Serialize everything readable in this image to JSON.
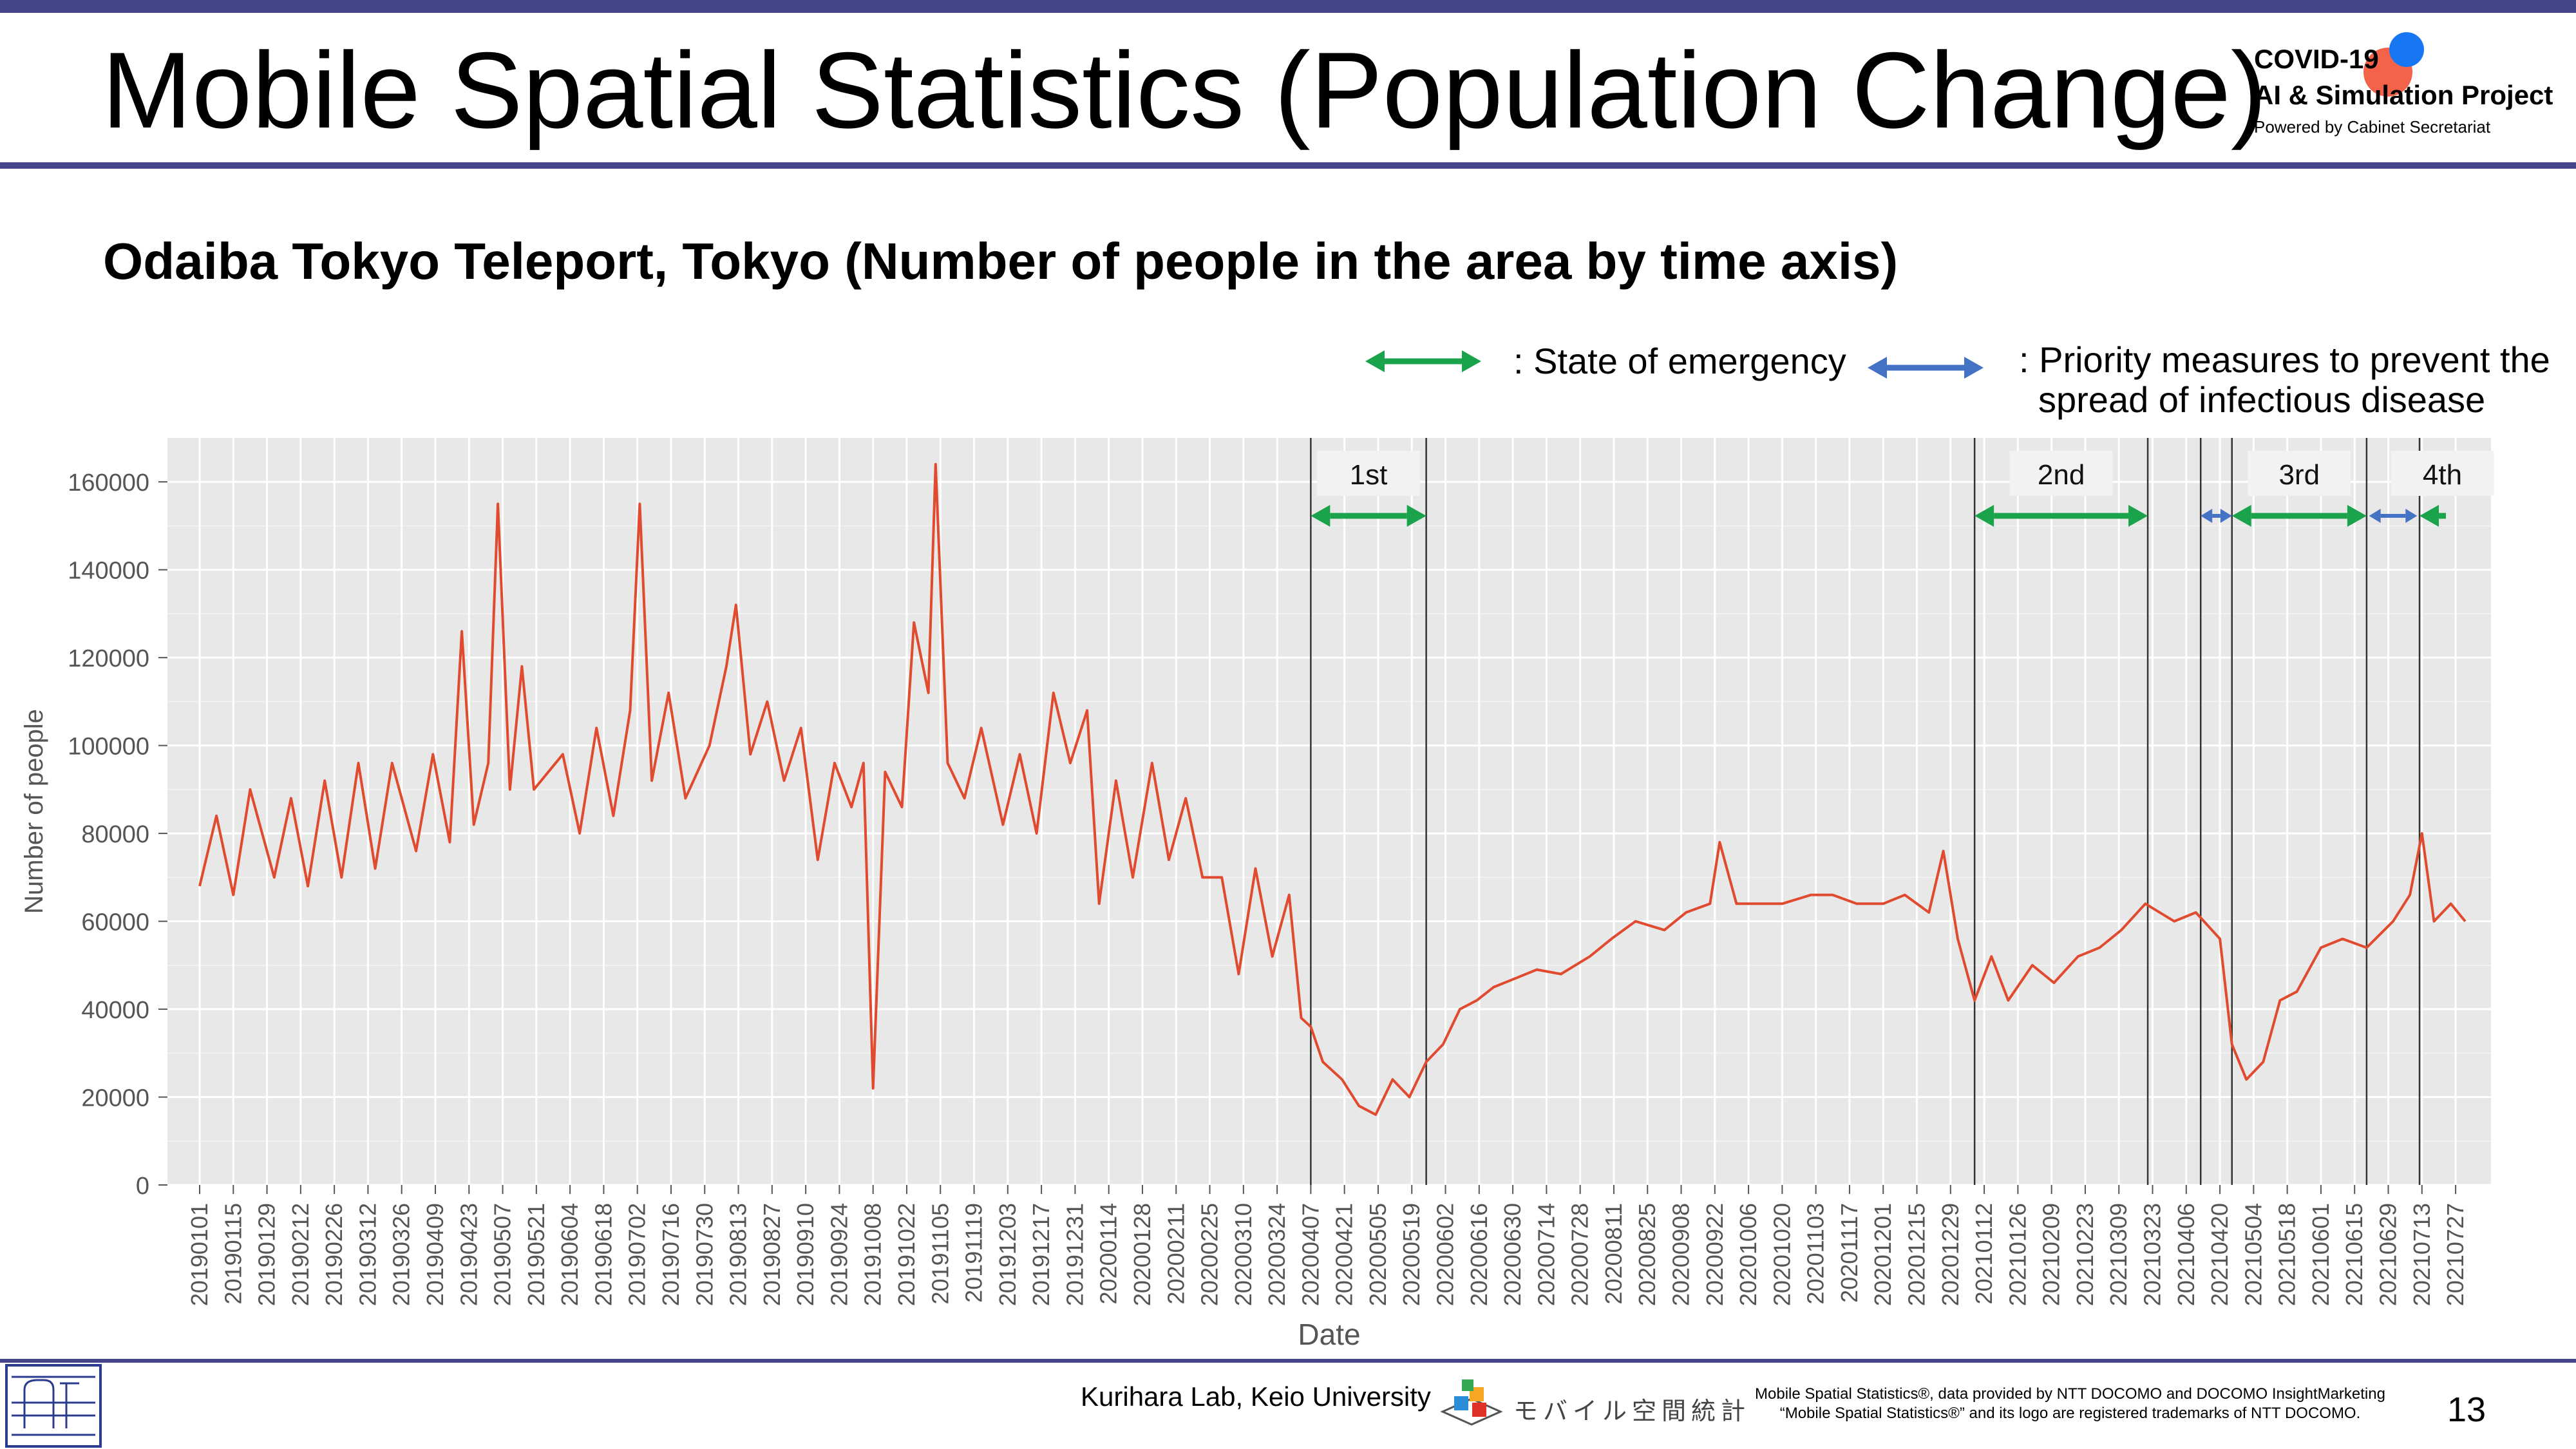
{
  "header": {
    "title": "Mobile Spatial Statistics (Population Change)",
    "logo": {
      "line1": "COVID-19",
      "line2": "AI & Simulation Project",
      "line3": "Powered by Cabinet Secretariat",
      "dot_colors": [
        "#f2634a",
        "#1777f2"
      ]
    }
  },
  "subtitle": "Odaiba Tokyo Teleport, Tokyo (Number of people in the area by time axis)",
  "legend": {
    "emergency": ": State of emergency",
    "priority_line1": ": Priority measures to prevent the",
    "priority_line2": "spread of infectious disease",
    "emergency_color": "#1aa34a",
    "priority_color": "#4472c4"
  },
  "chart_data": {
    "type": "line",
    "title": "",
    "xlabel": "Date",
    "ylabel": "Number of people",
    "ylim": [
      0,
      170000
    ],
    "yticks": [
      0,
      20000,
      40000,
      60000,
      80000,
      100000,
      120000,
      140000,
      160000
    ],
    "grid": true,
    "line_color": "#e04a2f",
    "x_start": "2019-01-01",
    "x_end": "2021-07-31",
    "xticks": [
      "20190101",
      "20190115",
      "20190129",
      "20190212",
      "20190226",
      "20190312",
      "20190326",
      "20190409",
      "20190423",
      "20190507",
      "20190521",
      "20190604",
      "20190618",
      "20190702",
      "20190716",
      "20190730",
      "20190813",
      "20190827",
      "20190910",
      "20190924",
      "20191008",
      "20191022",
      "20191105",
      "20191119",
      "20191203",
      "20191217",
      "20191231",
      "20200114",
      "20200128",
      "20200211",
      "20200225",
      "20200310",
      "20200324",
      "20200407",
      "20200421",
      "20200505",
      "20200519",
      "20200602",
      "20200616",
      "20200630",
      "20200714",
      "20200728",
      "20200811",
      "20200825",
      "20200908",
      "20200922",
      "20201006",
      "20201020",
      "20201103",
      "20201117",
      "20201201",
      "20201215",
      "20201229",
      "20210112",
      "20210126",
      "20210209",
      "20210223",
      "20210309",
      "20210323",
      "20210406",
      "20210420",
      "20210504",
      "20210518",
      "20210601",
      "20210615",
      "20210629",
      "20210713",
      "20210727"
    ],
    "series": [
      {
        "points": [
          [
            "2019-01-01",
            68000
          ],
          [
            "2019-01-08",
            84000
          ],
          [
            "2019-01-15",
            66000
          ],
          [
            "2019-01-22",
            90000
          ],
          [
            "2019-02-01",
            70000
          ],
          [
            "2019-02-08",
            88000
          ],
          [
            "2019-02-15",
            68000
          ],
          [
            "2019-02-22",
            92000
          ],
          [
            "2019-03-01",
            70000
          ],
          [
            "2019-03-08",
            96000
          ],
          [
            "2019-03-15",
            72000
          ],
          [
            "2019-03-22",
            96000
          ],
          [
            "2019-04-01",
            76000
          ],
          [
            "2019-04-08",
            98000
          ],
          [
            "2019-04-15",
            78000
          ],
          [
            "2019-04-20",
            126000
          ],
          [
            "2019-04-25",
            82000
          ],
          [
            "2019-05-01",
            96000
          ],
          [
            "2019-05-05",
            155000
          ],
          [
            "2019-05-10",
            90000
          ],
          [
            "2019-05-15",
            118000
          ],
          [
            "2019-05-20",
            90000
          ],
          [
            "2019-06-01",
            98000
          ],
          [
            "2019-06-08",
            80000
          ],
          [
            "2019-06-15",
            104000
          ],
          [
            "2019-06-22",
            84000
          ],
          [
            "2019-06-29",
            108000
          ],
          [
            "2019-07-03",
            155000
          ],
          [
            "2019-07-08",
            92000
          ],
          [
            "2019-07-15",
            112000
          ],
          [
            "2019-07-22",
            88000
          ],
          [
            "2019-08-01",
            100000
          ],
          [
            "2019-08-08",
            118000
          ],
          [
            "2019-08-12",
            132000
          ],
          [
            "2019-08-18",
            98000
          ],
          [
            "2019-08-25",
            110000
          ],
          [
            "2019-09-01",
            92000
          ],
          [
            "2019-09-08",
            104000
          ],
          [
            "2019-09-15",
            74000
          ],
          [
            "2019-09-22",
            96000
          ],
          [
            "2019-09-29",
            86000
          ],
          [
            "2019-10-04",
            96000
          ],
          [
            "2019-10-08",
            22000
          ],
          [
            "2019-10-13",
            94000
          ],
          [
            "2019-10-20",
            86000
          ],
          [
            "2019-10-25",
            128000
          ],
          [
            "2019-10-31",
            112000
          ],
          [
            "2019-11-03",
            164000
          ],
          [
            "2019-11-08",
            96000
          ],
          [
            "2019-11-15",
            88000
          ],
          [
            "2019-11-22",
            104000
          ],
          [
            "2019-12-01",
            82000
          ],
          [
            "2019-12-08",
            98000
          ],
          [
            "2019-12-15",
            80000
          ],
          [
            "2019-12-22",
            112000
          ],
          [
            "2019-12-29",
            96000
          ],
          [
            "2020-01-05",
            108000
          ],
          [
            "2020-01-10",
            64000
          ],
          [
            "2020-01-17",
            92000
          ],
          [
            "2020-01-24",
            70000
          ],
          [
            "2020-02-01",
            96000
          ],
          [
            "2020-02-08",
            74000
          ],
          [
            "2020-02-15",
            88000
          ],
          [
            "2020-02-22",
            70000
          ],
          [
            "2020-03-01",
            70000
          ],
          [
            "2020-03-08",
            48000
          ],
          [
            "2020-03-15",
            72000
          ],
          [
            "2020-03-22",
            52000
          ],
          [
            "2020-03-29",
            66000
          ],
          [
            "2020-04-03",
            38000
          ],
          [
            "2020-04-07",
            36000
          ],
          [
            "2020-04-12",
            28000
          ],
          [
            "2020-04-20",
            24000
          ],
          [
            "2020-04-27",
            18000
          ],
          [
            "2020-05-04",
            16000
          ],
          [
            "2020-05-11",
            24000
          ],
          [
            "2020-05-18",
            20000
          ],
          [
            "2020-05-25",
            28000
          ],
          [
            "2020-06-01",
            32000
          ],
          [
            "2020-06-08",
            40000
          ],
          [
            "2020-06-15",
            42000
          ],
          [
            "2020-06-22",
            45000
          ],
          [
            "2020-07-01",
            47000
          ],
          [
            "2020-07-10",
            49000
          ],
          [
            "2020-07-20",
            48000
          ],
          [
            "2020-08-01",
            52000
          ],
          [
            "2020-08-10",
            56000
          ],
          [
            "2020-08-20",
            60000
          ],
          [
            "2020-09-01",
            58000
          ],
          [
            "2020-09-10",
            62000
          ],
          [
            "2020-09-20",
            64000
          ],
          [
            "2020-09-24",
            78000
          ],
          [
            "2020-10-01",
            64000
          ],
          [
            "2020-10-10",
            64000
          ],
          [
            "2020-10-20",
            64000
          ],
          [
            "2020-11-01",
            66000
          ],
          [
            "2020-11-10",
            66000
          ],
          [
            "2020-11-20",
            64000
          ],
          [
            "2020-12-01",
            64000
          ],
          [
            "2020-12-10",
            66000
          ],
          [
            "2020-12-20",
            62000
          ],
          [
            "2020-12-26",
            76000
          ],
          [
            "2021-01-01",
            56000
          ],
          [
            "2021-01-08",
            42000
          ],
          [
            "2021-01-15",
            52000
          ],
          [
            "2021-01-22",
            42000
          ],
          [
            "2021-02-01",
            50000
          ],
          [
            "2021-02-10",
            46000
          ],
          [
            "2021-02-20",
            52000
          ],
          [
            "2021-03-01",
            54000
          ],
          [
            "2021-03-10",
            58000
          ],
          [
            "2021-03-20",
            64000
          ],
          [
            "2021-04-01",
            60000
          ],
          [
            "2021-04-10",
            62000
          ],
          [
            "2021-04-20",
            56000
          ],
          [
            "2021-04-25",
            32000
          ],
          [
            "2021-05-01",
            24000
          ],
          [
            "2021-05-08",
            28000
          ],
          [
            "2021-05-15",
            42000
          ],
          [
            "2021-05-22",
            44000
          ],
          [
            "2021-06-01",
            54000
          ],
          [
            "2021-06-10",
            56000
          ],
          [
            "2021-06-20",
            54000
          ],
          [
            "2021-07-01",
            60000
          ],
          [
            "2021-07-08",
            66000
          ],
          [
            "2021-07-13",
            80000
          ],
          [
            "2021-07-18",
            60000
          ],
          [
            "2021-07-25",
            64000
          ],
          [
            "2021-07-31",
            60000
          ]
        ]
      }
    ],
    "period_lines": [
      "2020-04-07",
      "2020-05-25",
      "2021-01-08",
      "2021-03-21",
      "2021-04-12",
      "2021-04-25",
      "2021-06-20",
      "2021-07-12"
    ],
    "periods": [
      {
        "label": "1st",
        "type": "emergency",
        "start": "2020-04-07",
        "end": "2020-05-25"
      },
      {
        "label": "2nd",
        "type": "emergency",
        "start": "2021-01-08",
        "end": "2021-03-21"
      },
      {
        "label": "",
        "type": "priority",
        "start": "2021-04-12",
        "end": "2021-04-25"
      },
      {
        "label": "3rd",
        "type": "emergency",
        "start": "2021-04-25",
        "end": "2021-06-20"
      },
      {
        "label": "",
        "type": "priority",
        "start": "2021-06-21",
        "end": "2021-07-11"
      },
      {
        "label": "4th",
        "type": "emergency",
        "start": "2021-07-12",
        "end": "2021-07-31"
      }
    ]
  },
  "footer": {
    "lab": "Kurihara Lab, Keio University",
    "mobile_logo_text": "モバイル空間統計",
    "notice_line1": "Mobile Spatial Statistics®, data provided by NTT DOCOMO and DOCOMO InsightMarketing",
    "notice_line2": "“Mobile Spatial Statistics®” and its logo are registered trademarks of NTT DOCOMO.",
    "page_number": "13"
  }
}
